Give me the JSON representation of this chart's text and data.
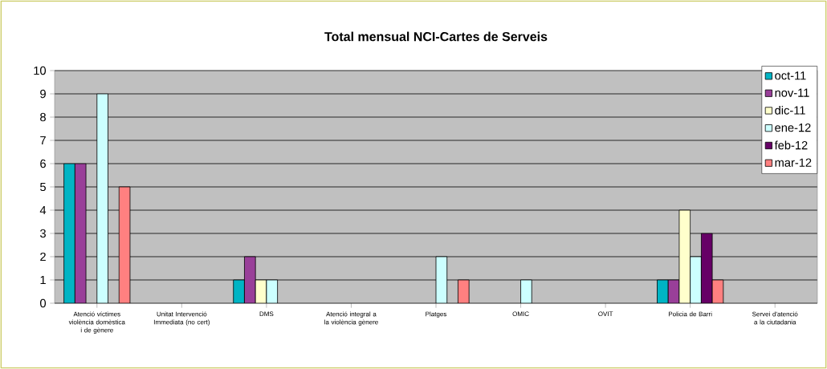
{
  "chart_data": {
    "type": "bar",
    "title": "Total mensual NCI-Cartes de Serveis",
    "categories": [
      "Atenció víctimes violència domèstica i de gènere",
      "Unitat Intervenció Immediata (no cert)",
      "DMS",
      "Atenció integral a la violència gènere",
      "Platges",
      "OMIC",
      "OVIT",
      "Policia de Barri",
      "Servei d'atenció a la ciutadania"
    ],
    "series": [
      {
        "name": "oct-11",
        "color": "#00b4c4",
        "values": [
          6,
          null,
          1,
          null,
          null,
          null,
          null,
          1,
          null
        ]
      },
      {
        "name": "nov-11",
        "color": "#993f99",
        "values": [
          6,
          null,
          2,
          null,
          null,
          null,
          null,
          1,
          null
        ]
      },
      {
        "name": "dic-11",
        "color": "#ffffcc",
        "values": [
          null,
          null,
          1,
          null,
          null,
          null,
          null,
          4,
          null
        ]
      },
      {
        "name": "ene-12",
        "color": "#ccffff",
        "values": [
          9,
          null,
          1,
          null,
          2,
          1,
          null,
          2,
          null
        ]
      },
      {
        "name": "feb-12",
        "color": "#660066",
        "values": [
          null,
          null,
          null,
          null,
          null,
          null,
          null,
          3,
          null
        ]
      },
      {
        "name": "mar-12",
        "color": "#ff8080",
        "values": [
          5,
          null,
          null,
          null,
          1,
          null,
          null,
          1,
          null
        ]
      }
    ],
    "ylim": [
      0,
      10
    ],
    "yticks": [
      0,
      1,
      2,
      3,
      4,
      5,
      6,
      7,
      8,
      9,
      10
    ],
    "grid": "y",
    "legend": "top right"
  }
}
